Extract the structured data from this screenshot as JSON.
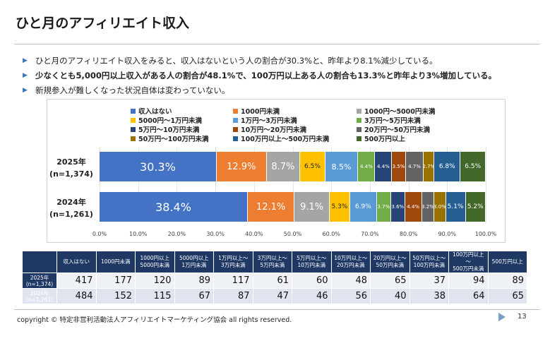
{
  "slide": {
    "title": "ひと月のアフィリエイト収入",
    "bullets": [
      {
        "text": "ひと月のアフィリエイト収入をみると、収入はないという人の割合が30.3%と、昨年より8.1%減少している。",
        "bold": false
      },
      {
        "text": "少なくとも5,000円以上収入がある人の割合が48.1%で、100万円以上ある人の割合も13.3%と昨年より3%増加している。",
        "bold": true
      },
      {
        "text": "新規参入が難しくなった状況自体は変わっていない。",
        "bold": false
      }
    ],
    "copyright": "copyright © 特定非営利活動法人アフィリエイトマーケティング協会 all rights reserved.",
    "page_number": "13"
  },
  "chart_data": {
    "type": "bar",
    "orientation": "horizontal-stacked-100",
    "categories": [
      "収入はない",
      "1000円未満",
      "1000円～5000円未満",
      "5000円～1万円未満",
      "1万円～3万円未満",
      "3万円～5万円未満",
      "5万円～10万円未満",
      "10万円～20万円未満",
      "20万円～50万円未満",
      "50万円～100万円未満",
      "100万円以上～500万円未満",
      "500万円以上"
    ],
    "colors": [
      "#4472c4",
      "#ed7d31",
      "#a5a5a5",
      "#ffc000",
      "#5b9bd5",
      "#70ad47",
      "#264478",
      "#9e480e",
      "#636363",
      "#997300",
      "#255e91",
      "#43682b"
    ],
    "rows": [
      {
        "label_line1": "2025年",
        "label_line2": "(n=1,374)",
        "values": [
          30.3,
          12.9,
          8.7,
          6.5,
          8.5,
          4.4,
          4.4,
          3.5,
          4.7,
          2.7,
          6.8,
          6.5
        ],
        "labels": [
          "30.3%",
          "12.9%",
          "8.7%",
          "6.5%",
          "8.5%",
          "4.4%",
          "4.4%",
          "3.5%",
          "4.7%",
          "2.7%",
          "6.8%",
          "6.5%"
        ]
      },
      {
        "label_line1": "2024年",
        "label_line2": "(n=1,261)",
        "values": [
          38.4,
          12.1,
          9.1,
          5.3,
          6.9,
          3.7,
          3.6,
          4.4,
          3.2,
          3.0,
          5.1,
          5.2
        ],
        "labels": [
          "38.4%",
          "12.1%",
          "9.1%",
          "5.3%",
          "6.9%",
          "3.7%",
          "3.6%",
          "4.4%",
          "3.2%",
          "3.0%",
          "5.1%",
          "5.2%"
        ]
      }
    ],
    "xlim": [
      0,
      100
    ],
    "xticks": [
      "0.0%",
      "10.0%",
      "20.0%",
      "30.0%",
      "40.0%",
      "50.0%",
      "60.0%",
      "70.0%",
      "80.0%",
      "90.0%",
      "100.0%"
    ],
    "legend_placement": "top"
  },
  "table": {
    "headers": [
      "収入はない",
      "1000円未満",
      "1000円以上\n5000円未満",
      "5000円以上\n1万円未満",
      "1万円以上～\n3万円未満",
      "3万円以上～\n5万円未満",
      "5万円以上～\n10万円未満",
      "10万円以上～\n20万円未満",
      "20万円以上～\n50万円未満",
      "50万円以上～\n100万円未満",
      "100万円以上～\n500万円未満",
      "500万円以上"
    ],
    "rows": [
      {
        "label": "2025年\n(n=1,374)",
        "values": [
          "417",
          "177",
          "120",
          "89",
          "117",
          "61",
          "60",
          "48",
          "65",
          "37",
          "94",
          "89"
        ]
      },
      {
        "label": "2024年\n(n=1,261)",
        "values": [
          "484",
          "152",
          "115",
          "67",
          "87",
          "47",
          "46",
          "56",
          "40",
          "38",
          "64",
          "65"
        ]
      }
    ]
  }
}
